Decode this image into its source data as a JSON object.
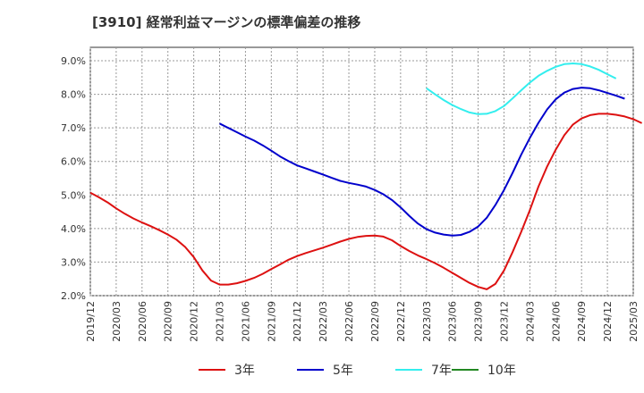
{
  "chart_data": {
    "type": "line",
    "title": "[3910]  経常利益マージンの標準偏差の推移",
    "xlabel": "",
    "ylabel": "",
    "ylim": [
      2.0,
      9.4
    ],
    "y_ticks": [
      "2.0%",
      "3.0%",
      "4.0%",
      "5.0%",
      "6.0%",
      "7.0%",
      "8.0%",
      "9.0%"
    ],
    "y_tick_values": [
      2.0,
      3.0,
      4.0,
      5.0,
      6.0,
      7.0,
      8.0,
      9.0
    ],
    "x_ticks": [
      "2019/12",
      "2020/03",
      "2020/06",
      "2020/09",
      "2020/12",
      "2021/03",
      "2021/06",
      "2021/09",
      "2021/12",
      "2022/03",
      "2022/06",
      "2022/09",
      "2022/12",
      "2023/03",
      "2023/06",
      "2023/09",
      "2023/12",
      "2024/03",
      "2024/06",
      "2024/09",
      "2024/12",
      "2025/03"
    ],
    "grid": true,
    "legend_position": "bottom",
    "series": [
      {
        "name": "3年",
        "color": "#dd1111",
        "start_month": 0,
        "values": [
          5.07,
          4.93,
          4.78,
          4.6,
          4.44,
          4.3,
          4.18,
          4.07,
          3.95,
          3.82,
          3.67,
          3.45,
          3.15,
          2.75,
          2.45,
          2.33,
          2.33,
          2.37,
          2.44,
          2.53,
          2.65,
          2.79,
          2.93,
          3.07,
          3.18,
          3.27,
          3.35,
          3.43,
          3.52,
          3.61,
          3.69,
          3.75,
          3.78,
          3.79,
          3.76,
          3.65,
          3.48,
          3.33,
          3.2,
          3.09,
          2.97,
          2.83,
          2.68,
          2.53,
          2.38,
          2.26,
          2.19,
          2.35,
          2.75,
          3.3,
          3.9,
          4.55,
          5.25,
          5.85,
          6.35,
          6.78,
          7.1,
          7.28,
          7.38,
          7.42,
          7.42,
          7.39,
          7.34,
          7.26,
          7.14
        ]
      },
      {
        "name": "5年",
        "color": "#0000cc",
        "start_month": 15,
        "values": [
          7.13,
          7.0,
          6.87,
          6.74,
          6.62,
          6.48,
          6.32,
          6.15,
          6.01,
          5.88,
          5.79,
          5.7,
          5.61,
          5.51,
          5.42,
          5.36,
          5.31,
          5.25,
          5.15,
          5.02,
          4.85,
          4.63,
          4.38,
          4.15,
          3.98,
          3.88,
          3.82,
          3.79,
          3.81,
          3.9,
          4.06,
          4.32,
          4.7,
          5.15,
          5.66,
          6.2,
          6.7,
          7.15,
          7.55,
          7.85,
          8.05,
          8.16,
          8.2,
          8.18,
          8.12,
          8.04,
          7.96,
          7.87
        ]
      },
      {
        "name": "7年",
        "color": "#33eeee",
        "start_month": 39,
        "values": [
          8.18,
          8.0,
          7.83,
          7.68,
          7.56,
          7.46,
          7.41,
          7.42,
          7.5,
          7.65,
          7.88,
          8.12,
          8.35,
          8.55,
          8.7,
          8.82,
          8.9,
          8.92,
          8.9,
          8.83,
          8.73,
          8.6,
          8.47
        ]
      },
      {
        "name": "10年",
        "color": "#228822",
        "start_month": 0,
        "values": []
      }
    ]
  }
}
